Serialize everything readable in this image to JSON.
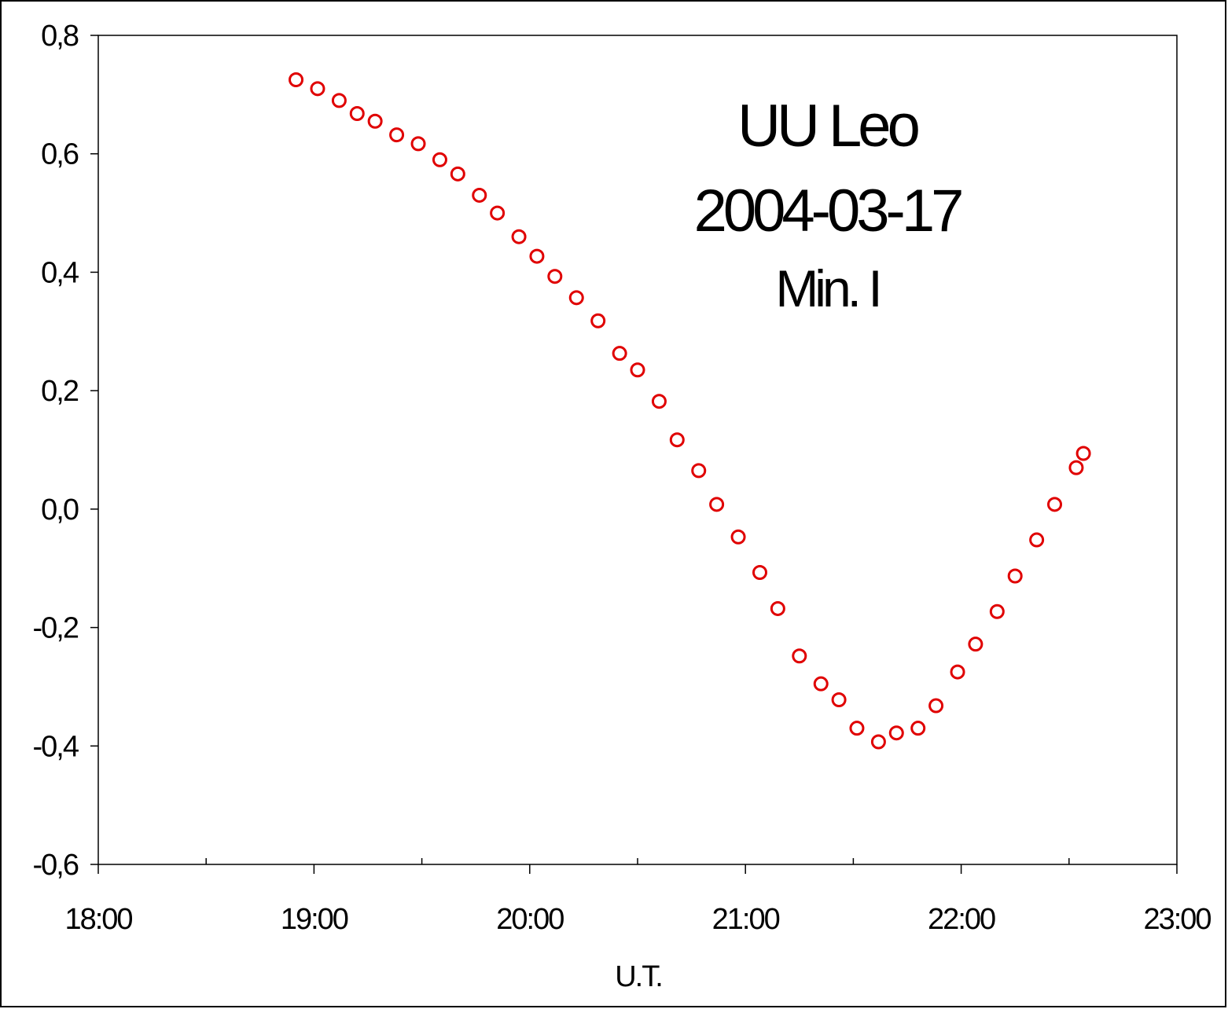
{
  "chart_data": {
    "type": "scatter",
    "title": "",
    "xlabel": "U.T.",
    "ylabel": "",
    "xlim": [
      "18:00",
      "23:00"
    ],
    "ylim": [
      -0.6,
      0.8
    ],
    "x_ticks": [
      "18:00",
      "19:00",
      "20:00",
      "21:00",
      "22:00",
      "23:00"
    ],
    "y_ticks": [
      "0,8",
      "0,6",
      "0,4",
      "0,2",
      "0,0",
      "-0,2",
      "-0,4",
      "-0,6"
    ],
    "grid": false,
    "legend": "none",
    "marker": "open-circle",
    "marker_color": "#e00000",
    "annotation_lines": [
      "UU Leo",
      "2004-03-17",
      "Min. I"
    ],
    "series": [
      {
        "x": [
          "18:55",
          "19:01",
          "19:07",
          "19:12",
          "19:17",
          "19:23",
          "19:29",
          "19:35",
          "19:40",
          "19:46",
          "19:51",
          "19:57",
          "20:02",
          "20:07",
          "20:13",
          "20:19",
          "20:25",
          "20:30",
          "20:36",
          "20:41",
          "20:47",
          "20:52",
          "20:58",
          "21:04",
          "21:09",
          "21:15",
          "21:21",
          "21:26",
          "21:31",
          "21:37",
          "21:42",
          "21:48",
          "21:53",
          "21:59",
          "22:04",
          "22:10",
          "22:15",
          "22:21",
          "22:26",
          "22:32",
          "22:34"
        ],
        "y": [
          0.725,
          0.71,
          0.69,
          0.668,
          0.655,
          0.632,
          0.617,
          0.59,
          0.566,
          0.53,
          0.5,
          0.46,
          0.427,
          0.393,
          0.357,
          0.318,
          0.263,
          0.235,
          0.182,
          0.117,
          0.065,
          0.008,
          -0.047,
          -0.107,
          -0.168,
          -0.248,
          -0.295,
          -0.322,
          -0.37,
          -0.393,
          -0.378,
          -0.37,
          -0.332,
          -0.275,
          -0.228,
          -0.173,
          -0.113,
          -0.052,
          0.008,
          0.07,
          0.094
        ]
      }
    ]
  }
}
